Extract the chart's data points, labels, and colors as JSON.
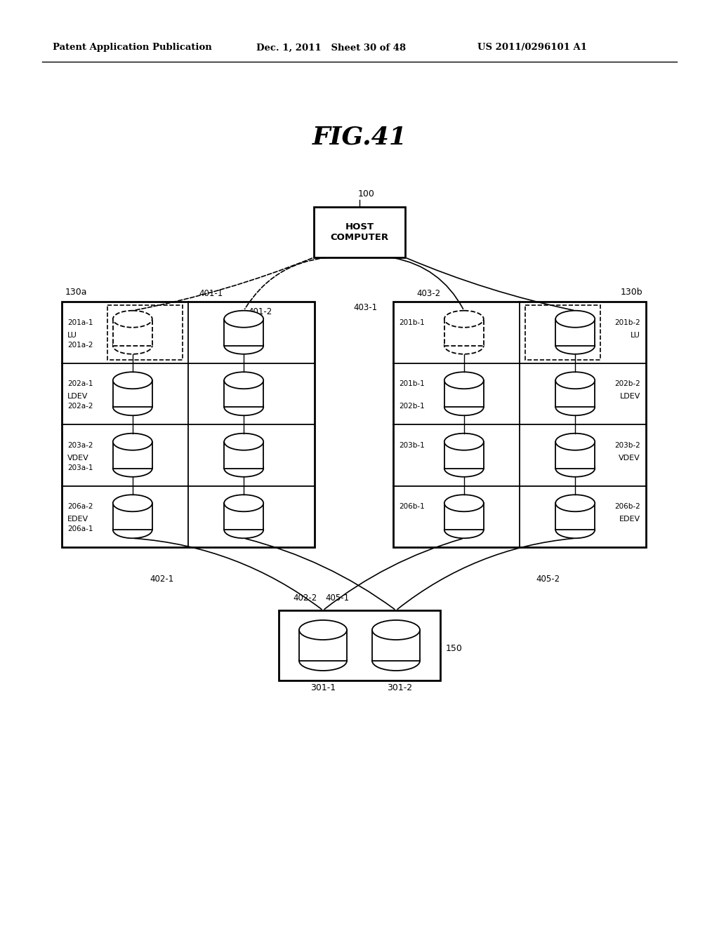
{
  "header_left": "Patent Application Publication",
  "header_mid": "Dec. 1, 2011   Sheet 30 of 48",
  "header_right": "US 2011/0296101 A1",
  "fig_title": "FIG.41",
  "bg_color": "#ffffff",
  "host_label": "HOST\nCOMPUTER",
  "host_ref": "100",
  "storage_a_label": "130a",
  "storage_b_label": "130b",
  "disk_label": "150",
  "disk_ref1": "301-1",
  "disk_ref2": "301-2",
  "conn_labels": {
    "401_1": "401-1",
    "401_2": "401-2",
    "403_1": "403-1",
    "403_2": "403-2",
    "402_1": "402-1",
    "402_2": "402-2",
    "405_1": "405-1",
    "405_2": "405-2"
  },
  "rows_a": [
    {
      "label": "LU",
      "top_lbl": "201a-1",
      "bot_lbl": "201a-2",
      "dashed": true
    },
    {
      "label": "LDEV",
      "top_lbl": "202a-1",
      "bot_lbl": "202a-2",
      "dashed": false
    },
    {
      "label": "VDEV",
      "top_lbl": "203a-2",
      "bot_lbl": "203a-1",
      "dashed": false
    },
    {
      "label": "EDEV",
      "top_lbl": "206a-2",
      "bot_lbl": "206a-1",
      "dashed": false
    }
  ],
  "rows_b_left": [
    {
      "label": "LU",
      "top_lbl": "201b-1",
      "bot_lbl": "",
      "dashed": true
    },
    {
      "label": "LDEV",
      "top_lbl": "201b-1",
      "bot_lbl": "202b-1",
      "dashed": false
    },
    {
      "label": "VDEV",
      "top_lbl": "203b-1",
      "bot_lbl": "",
      "dashed": false
    },
    {
      "label": "EDEV",
      "top_lbl": "206b-1",
      "bot_lbl": "",
      "dashed": false
    }
  ],
  "rows_b_right": [
    {
      "label": "LU",
      "top_lbl": "201b-2",
      "dashed": true
    },
    {
      "label": "LDEV",
      "top_lbl": "202b-2",
      "dashed": false
    },
    {
      "label": "VDEV",
      "top_lbl": "203b-2",
      "dashed": false
    },
    {
      "label": "EDEV",
      "top_lbl": "206b-2",
      "dashed": false
    }
  ]
}
